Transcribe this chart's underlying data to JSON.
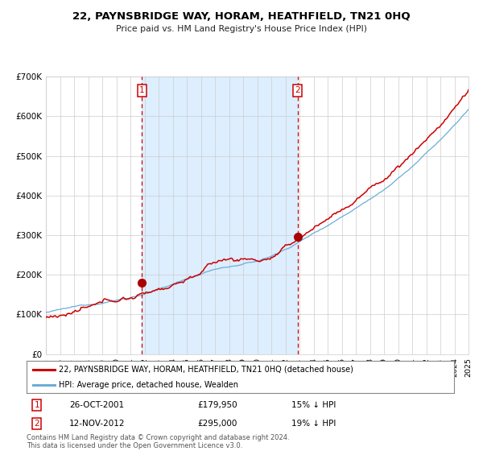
{
  "title": "22, PAYNSBRIDGE WAY, HORAM, HEATHFIELD, TN21 0HQ",
  "subtitle": "Price paid vs. HM Land Registry's House Price Index (HPI)",
  "legend_line1": "22, PAYNSBRIDGE WAY, HORAM, HEATHFIELD, TN21 0HQ (detached house)",
  "legend_line2": "HPI: Average price, detached house, Wealden",
  "purchase1_date": "26-OCT-2001",
  "purchase1_price": 179950,
  "purchase1_label": "15% ↓ HPI",
  "purchase2_date": "12-NOV-2012",
  "purchase2_price": 295000,
  "purchase2_label": "19% ↓ HPI",
  "purchase1_year": 2001.82,
  "purchase2_year": 2012.87,
  "year_start": 1995,
  "year_end": 2025,
  "ylim_min": 0,
  "ylim_max": 700000,
  "hpi_line_color": "#6baed6",
  "price_line_color": "#cc0000",
  "dashed_line_color": "#cc0000",
  "shade_color": "#ddeeff",
  "background_color": "#ffffff",
  "grid_color": "#cccccc",
  "marker_color": "#aa0000",
  "footer_text": "Contains HM Land Registry data © Crown copyright and database right 2024.\nThis data is licensed under the Open Government Licence v3.0.",
  "yticks": [
    0,
    100000,
    200000,
    300000,
    400000,
    500000,
    600000,
    700000
  ],
  "ytick_labels": [
    "£0",
    "£100K",
    "£200K",
    "£300K",
    "£400K",
    "£500K",
    "£600K",
    "£700K"
  ]
}
